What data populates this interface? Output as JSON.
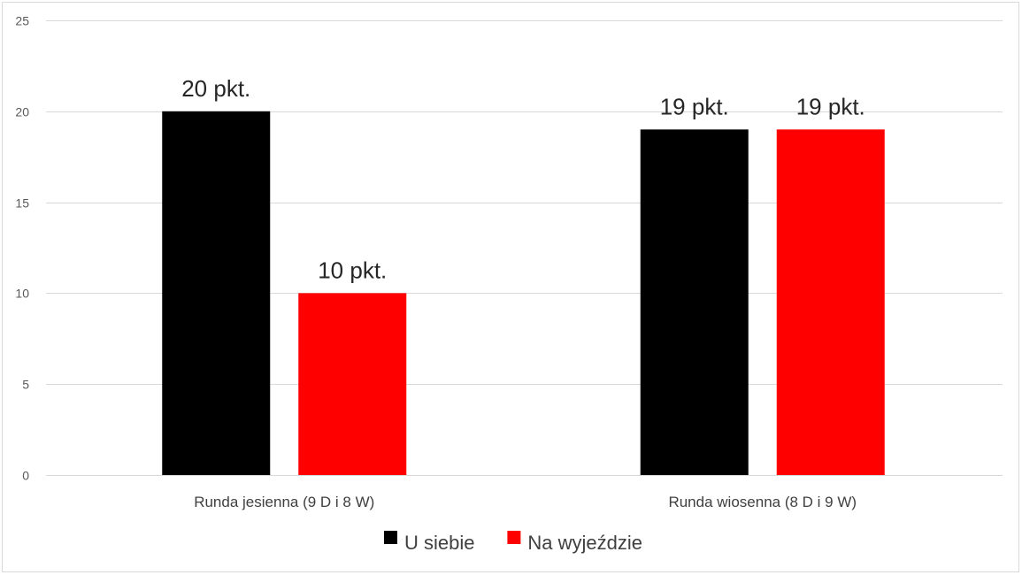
{
  "chart_data": {
    "type": "bar",
    "title": "",
    "xlabel": "",
    "ylabel": "",
    "categories": [
      "Runda jesienna (9 D i 8 W)",
      "Runda wiosenna (8 D i 9 W)"
    ],
    "series": [
      {
        "name": "U siebie",
        "color": "#000000",
        "values": [
          20,
          19
        ],
        "labels": [
          "20 pkt.",
          "19 pkt."
        ]
      },
      {
        "name": "Na wyjeździe",
        "color": "#ff0000",
        "values": [
          10,
          19
        ],
        "labels": [
          "10 pkt.",
          "19 pkt."
        ]
      }
    ],
    "ylim": [
      0,
      25
    ],
    "yticks": [
      0,
      5,
      10,
      15,
      20,
      25
    ],
    "grid": true,
    "legend_position": "bottom"
  }
}
